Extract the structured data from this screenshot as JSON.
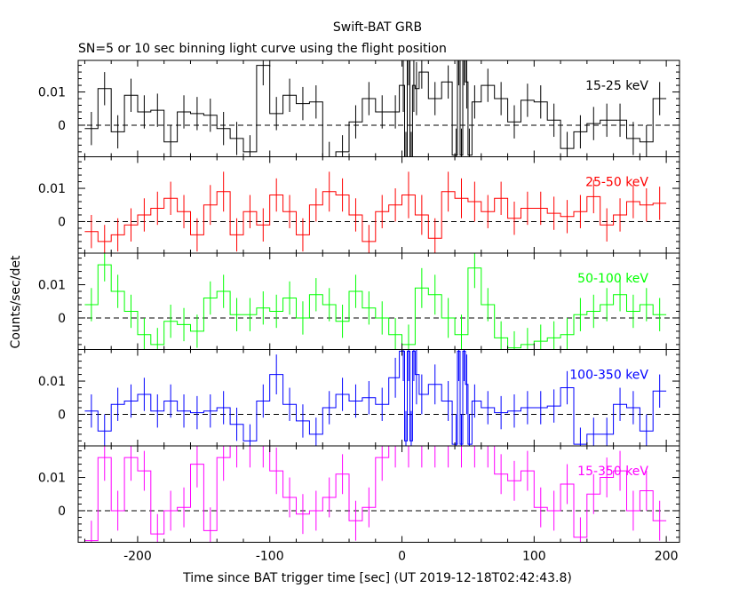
{
  "title": "Swift-BAT GRB",
  "subtitle": "SN=5 or 10 sec binning light curve using the flight position",
  "xlabel": "Time since BAT trigger time [sec] (UT 2019-12-18T02:42:43.8)",
  "ylabel": "Counts/sec/det",
  "chart_data": {
    "type": "line",
    "xlim": [
      -245,
      210
    ],
    "ylim": [
      -0.0095,
      0.0195
    ],
    "x_ticks": [
      -200,
      -100,
      0,
      100,
      200
    ],
    "y_ticks": [
      0,
      0.01
    ],
    "y_tick_labels": [
      "0",
      "0.01"
    ],
    "zero_line": true,
    "panels": [
      {
        "name": "15-25 keV",
        "color": "#000000",
        "x": [
          -235,
          -225,
          -215,
          -205,
          -195,
          -185,
          -175,
          -165,
          -155,
          -145,
          -135,
          -125,
          -115,
          -105,
          -95,
          -85,
          -75,
          -65,
          -55,
          -45,
          -35,
          -25,
          -15,
          -5,
          1,
          3,
          5,
          7,
          9,
          11,
          15,
          25,
          35,
          41,
          43,
          45,
          47,
          49,
          51,
          55,
          65,
          75,
          85,
          95,
          105,
          115,
          125,
          135,
          145,
          155,
          165,
          175,
          185,
          195
        ],
        "y": [
          -0.001,
          0.011,
          -0.002,
          0.009,
          0.004,
          0.0045,
          -0.005,
          0.004,
          0.0035,
          0.003,
          -0.001,
          -0.004,
          -0.008,
          0.018,
          0.0035,
          0.009,
          0.0065,
          0.007,
          -0.01,
          -0.008,
          0.001,
          0.008,
          0.004,
          0.004,
          0.012,
          -0.01,
          0.02,
          -0.01,
          0.012,
          0.011,
          0.016,
          0.008,
          0.013,
          -0.009,
          0.02,
          -0.009,
          0.02,
          0.013,
          -0.009,
          0.007,
          0.012,
          0.008,
          0.001,
          0.0075,
          0.007,
          0.0015,
          -0.007,
          -0.002,
          0.0005,
          0.0015,
          0.0015,
          -0.004,
          -0.005,
          0.008
        ],
        "err": [
          0.005,
          0.005,
          0.005,
          0.005,
          0.005,
          0.005,
          0.005,
          0.005,
          0.005,
          0.005,
          0.005,
          0.005,
          0.005,
          0.006,
          0.005,
          0.005,
          0.005,
          0.005,
          0.005,
          0.005,
          0.005,
          0.005,
          0.005,
          0.005,
          0.008,
          0.008,
          0.008,
          0.008,
          0.008,
          0.008,
          0.005,
          0.005,
          0.005,
          0.008,
          0.008,
          0.008,
          0.008,
          0.008,
          0.008,
          0.005,
          0.005,
          0.005,
          0.005,
          0.005,
          0.005,
          0.005,
          0.005,
          0.005,
          0.005,
          0.005,
          0.005,
          0.005,
          0.005,
          0.005
        ]
      },
      {
        "name": "25-50 keV",
        "color": "#ff0000",
        "x": [
          -235,
          -225,
          -215,
          -205,
          -195,
          -185,
          -175,
          -165,
          -155,
          -145,
          -135,
          -125,
          -115,
          -105,
          -95,
          -85,
          -75,
          -65,
          -55,
          -45,
          -35,
          -25,
          -15,
          -5,
          5,
          15,
          25,
          35,
          45,
          55,
          65,
          75,
          85,
          95,
          105,
          115,
          125,
          135,
          145,
          155,
          165,
          175,
          185,
          195
        ],
        "y": [
          -0.003,
          -0.006,
          -0.004,
          -0.001,
          0.002,
          0.004,
          0.007,
          0.003,
          -0.004,
          0.005,
          0.009,
          -0.004,
          0.003,
          -0.001,
          0.008,
          0.003,
          -0.004,
          0.005,
          0.009,
          0.008,
          0.002,
          -0.006,
          0.003,
          0.005,
          0.008,
          0.002,
          -0.005,
          0.009,
          0.007,
          0.006,
          0.003,
          0.007,
          0.001,
          0.004,
          0.004,
          0.0025,
          0.0015,
          0.003,
          0.0075,
          -0.001,
          0.002,
          0.006,
          0.005,
          0.0055
        ],
        "err": [
          0.005,
          0.005,
          0.005,
          0.005,
          0.005,
          0.005,
          0.005,
          0.005,
          0.005,
          0.006,
          0.006,
          0.005,
          0.005,
          0.005,
          0.005,
          0.005,
          0.005,
          0.005,
          0.006,
          0.005,
          0.005,
          0.005,
          0.005,
          0.005,
          0.007,
          0.006,
          0.006,
          0.006,
          0.006,
          0.006,
          0.005,
          0.005,
          0.005,
          0.005,
          0.005,
          0.005,
          0.005,
          0.005,
          0.005,
          0.005,
          0.005,
          0.005,
          0.005,
          0.005
        ]
      },
      {
        "name": "50-100 keV",
        "color": "#00ff00",
        "x": [
          -235,
          -225,
          -215,
          -205,
          -195,
          -185,
          -175,
          -165,
          -155,
          -145,
          -135,
          -125,
          -115,
          -105,
          -95,
          -85,
          -75,
          -65,
          -55,
          -45,
          -35,
          -25,
          -15,
          -5,
          5,
          15,
          25,
          35,
          45,
          55,
          65,
          75,
          85,
          95,
          105,
          115,
          125,
          135,
          145,
          155,
          165,
          175,
          185,
          195
        ],
        "y": [
          0.004,
          0.016,
          0.008,
          0.002,
          -0.005,
          -0.008,
          -0.001,
          -0.002,
          -0.004,
          0.006,
          0.008,
          0.001,
          0.001,
          0.003,
          0.002,
          0.006,
          0.0,
          0.007,
          0.004,
          -0.001,
          0.008,
          0.003,
          0.0,
          -0.005,
          -0.008,
          0.009,
          0.007,
          0.0,
          -0.005,
          0.015,
          0.004,
          -0.006,
          -0.009,
          -0.008,
          -0.007,
          -0.006,
          -0.005,
          0.001,
          0.002,
          0.004,
          0.007,
          0.002,
          0.004,
          0.001
        ],
        "err": [
          0.005,
          0.005,
          0.005,
          0.005,
          0.005,
          0.005,
          0.005,
          0.005,
          0.005,
          0.005,
          0.005,
          0.005,
          0.005,
          0.005,
          0.005,
          0.005,
          0.005,
          0.005,
          0.005,
          0.005,
          0.005,
          0.005,
          0.005,
          0.005,
          0.006,
          0.006,
          0.006,
          0.006,
          0.006,
          0.006,
          0.005,
          0.005,
          0.005,
          0.005,
          0.005,
          0.005,
          0.005,
          0.005,
          0.005,
          0.005,
          0.005,
          0.005,
          0.005,
          0.005
        ]
      },
      {
        "name": "100-350 keV",
        "color": "#0000ff",
        "x": [
          -235,
          -225,
          -215,
          -205,
          -195,
          -185,
          -175,
          -165,
          -155,
          -145,
          -135,
          -125,
          -115,
          -105,
          -95,
          -85,
          -75,
          -65,
          -55,
          -45,
          -35,
          -25,
          -15,
          -5,
          1,
          3,
          5,
          7,
          9,
          11,
          15,
          25,
          35,
          41,
          43,
          45,
          47,
          49,
          51,
          55,
          65,
          75,
          85,
          95,
          105,
          115,
          125,
          135,
          145,
          155,
          165,
          175,
          185,
          195
        ],
        "y": [
          0.001,
          -0.005,
          0.003,
          0.004,
          0.006,
          0.001,
          0.004,
          0.001,
          0.0005,
          0.001,
          0.002,
          -0.003,
          -0.008,
          0.004,
          0.012,
          0.003,
          -0.002,
          -0.006,
          0.002,
          0.006,
          0.004,
          0.005,
          0.003,
          0.011,
          0.019,
          -0.008,
          0.019,
          -0.008,
          0.019,
          0.012,
          0.006,
          0.009,
          0.004,
          -0.009,
          0.019,
          -0.009,
          0.019,
          0.009,
          -0.009,
          0.004,
          0.002,
          0.0005,
          0.001,
          0.002,
          0.002,
          0.0025,
          0.008,
          -0.009,
          -0.006,
          -0.006,
          0.003,
          0.002,
          -0.005,
          0.007
        ],
        "err": [
          0.005,
          0.005,
          0.005,
          0.005,
          0.005,
          0.005,
          0.005,
          0.005,
          0.005,
          0.005,
          0.005,
          0.005,
          0.005,
          0.005,
          0.006,
          0.005,
          0.005,
          0.005,
          0.005,
          0.005,
          0.005,
          0.005,
          0.005,
          0.006,
          0.009,
          0.009,
          0.009,
          0.009,
          0.009,
          0.009,
          0.006,
          0.006,
          0.006,
          0.009,
          0.009,
          0.009,
          0.009,
          0.009,
          0.009,
          0.005,
          0.005,
          0.005,
          0.005,
          0.005,
          0.005,
          0.005,
          0.005,
          0.005,
          0.005,
          0.005,
          0.005,
          0.005,
          0.005,
          0.005
        ]
      },
      {
        "name": "15-350 keV",
        "color": "#ff00ff",
        "x": [
          -235,
          -225,
          -215,
          -205,
          -195,
          -185,
          -175,
          -165,
          -155,
          -145,
          -135,
          -125,
          -115,
          -105,
          -95,
          -85,
          -75,
          -65,
          -55,
          -45,
          -35,
          -25,
          -15,
          -5,
          5,
          15,
          25,
          35,
          45,
          55,
          65,
          75,
          85,
          95,
          105,
          115,
          125,
          135,
          145,
          155,
          165,
          175,
          185,
          195
        ],
        "y": [
          -0.009,
          0.016,
          0.0,
          0.016,
          0.012,
          -0.007,
          0.0,
          0.001,
          0.014,
          -0.006,
          0.016,
          0.02,
          0.02,
          0.02,
          0.012,
          0.004,
          -0.001,
          0.0,
          0.004,
          0.011,
          -0.003,
          0.001,
          0.016,
          0.02,
          0.02,
          0.02,
          0.02,
          0.02,
          0.02,
          0.02,
          0.02,
          0.011,
          0.009,
          0.012,
          0.001,
          0.0,
          0.008,
          -0.008,
          0.005,
          0.01,
          0.012,
          0.0,
          0.006,
          -0.003
        ],
        "err": [
          0.006,
          0.007,
          0.006,
          0.007,
          0.006,
          0.006,
          0.006,
          0.006,
          0.007,
          0.007,
          0.007,
          0.007,
          0.007,
          0.007,
          0.007,
          0.006,
          0.006,
          0.006,
          0.006,
          0.006,
          0.006,
          0.006,
          0.007,
          0.007,
          0.007,
          0.007,
          0.007,
          0.007,
          0.007,
          0.007,
          0.007,
          0.006,
          0.006,
          0.006,
          0.006,
          0.006,
          0.006,
          0.006,
          0.006,
          0.006,
          0.006,
          0.006,
          0.006,
          0.006
        ]
      }
    ]
  }
}
